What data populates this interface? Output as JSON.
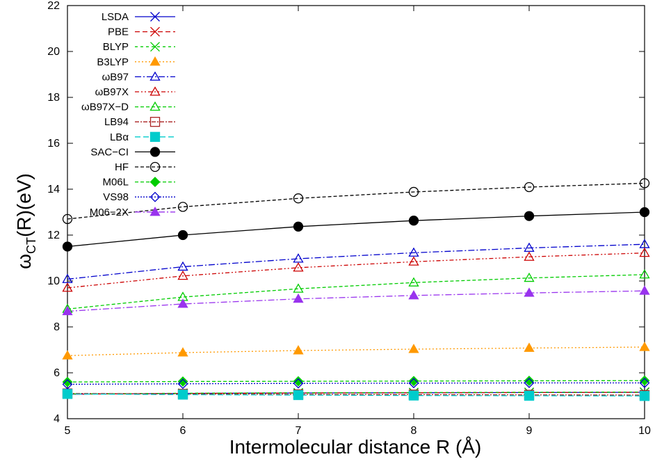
{
  "chart_data": {
    "type": "line",
    "title": "",
    "xlabel": "Intermolecular distance R (Å)",
    "ylabel_main": "ω",
    "ylabel_sub": "CT",
    "ylabel_rest": "(R)(eV)",
    "xlim": [
      5,
      10
    ],
    "ylim": [
      4,
      22
    ],
    "xticks": [
      5,
      6,
      7,
      8,
      9,
      10
    ],
    "yticks": [
      4,
      6,
      8,
      10,
      12,
      14,
      16,
      18,
      20,
      22
    ],
    "grid": false,
    "legend_position": "top-left",
    "x": [
      5,
      6,
      7,
      8,
      9,
      10
    ],
    "series": [
      {
        "name": "LSDA",
        "color": "#0000cc",
        "dash": "",
        "marker": "x",
        "values": [
          5.07,
          5.1,
          5.12,
          5.13,
          5.14,
          5.15
        ]
      },
      {
        "name": "PBE",
        "color": "#cc0000",
        "dash": "7,4",
        "marker": "x",
        "values": [
          5.07,
          5.1,
          5.12,
          5.13,
          5.14,
          5.15
        ]
      },
      {
        "name": "BLYP",
        "color": "#00cc00",
        "dash": "4,4",
        "marker": "x",
        "values": [
          5.08,
          5.11,
          5.13,
          5.14,
          5.15,
          5.16
        ]
      },
      {
        "name": "B3LYP",
        "color": "#ff9900",
        "dash": "2,3",
        "marker": "triangle-filled",
        "values": [
          6.75,
          6.88,
          6.97,
          7.03,
          7.08,
          7.12
        ]
      },
      {
        "name": "ωB97",
        "color": "#0000cc",
        "dash": "9,3,2,3",
        "marker": "triangle-open",
        "values": [
          10.08,
          10.62,
          10.97,
          11.23,
          11.44,
          11.6
        ]
      },
      {
        "name": "ωB97X",
        "color": "#cc0000",
        "dash": "6,3,2,3,2,3",
        "marker": "triangle-open",
        "values": [
          9.7,
          10.22,
          10.58,
          10.84,
          11.05,
          11.22
        ]
      },
      {
        "name": "ωB97X−D",
        "color": "#00cc00",
        "dash": "5,3",
        "marker": "triangle-open",
        "values": [
          8.78,
          9.3,
          9.66,
          9.93,
          10.13,
          10.28
        ]
      },
      {
        "name": "LB94",
        "color": "#aa2222",
        "dash": "6,2,2,2",
        "marker": "square-open",
        "values": [
          5.1,
          5.08,
          5.06,
          5.05,
          5.04,
          5.03
        ]
      },
      {
        "name": "LBα",
        "color": "#00cccc",
        "dash": "8,4",
        "marker": "square-filled",
        "values": [
          5.08,
          5.05,
          5.03,
          5.01,
          5.0,
          4.99
        ]
      },
      {
        "name": "SAC−CI",
        "color": "#000000",
        "dash": "",
        "marker": "circle-filled",
        "values": [
          11.5,
          12.0,
          12.37,
          12.63,
          12.83,
          13.0
        ]
      },
      {
        "name": "HF",
        "color": "#000000",
        "dash": "5,3",
        "marker": "circle-open",
        "values": [
          12.7,
          13.23,
          13.6,
          13.88,
          14.09,
          14.26
        ]
      },
      {
        "name": "M06L",
        "color": "#00cc00",
        "dash": "5,3",
        "marker": "diamond-filled",
        "values": [
          5.6,
          5.62,
          5.63,
          5.64,
          5.65,
          5.66
        ]
      },
      {
        "name": "VS98",
        "color": "#0000cc",
        "dash": "2,2",
        "marker": "diamond-open",
        "values": [
          5.5,
          5.52,
          5.54,
          5.55,
          5.56,
          5.56
        ]
      },
      {
        "name": "M06−2X",
        "color": "#9933ee",
        "dash": "9,3,2,3",
        "marker": "triangle-filled",
        "values": [
          8.68,
          9.0,
          9.22,
          9.37,
          9.48,
          9.57
        ]
      }
    ]
  }
}
